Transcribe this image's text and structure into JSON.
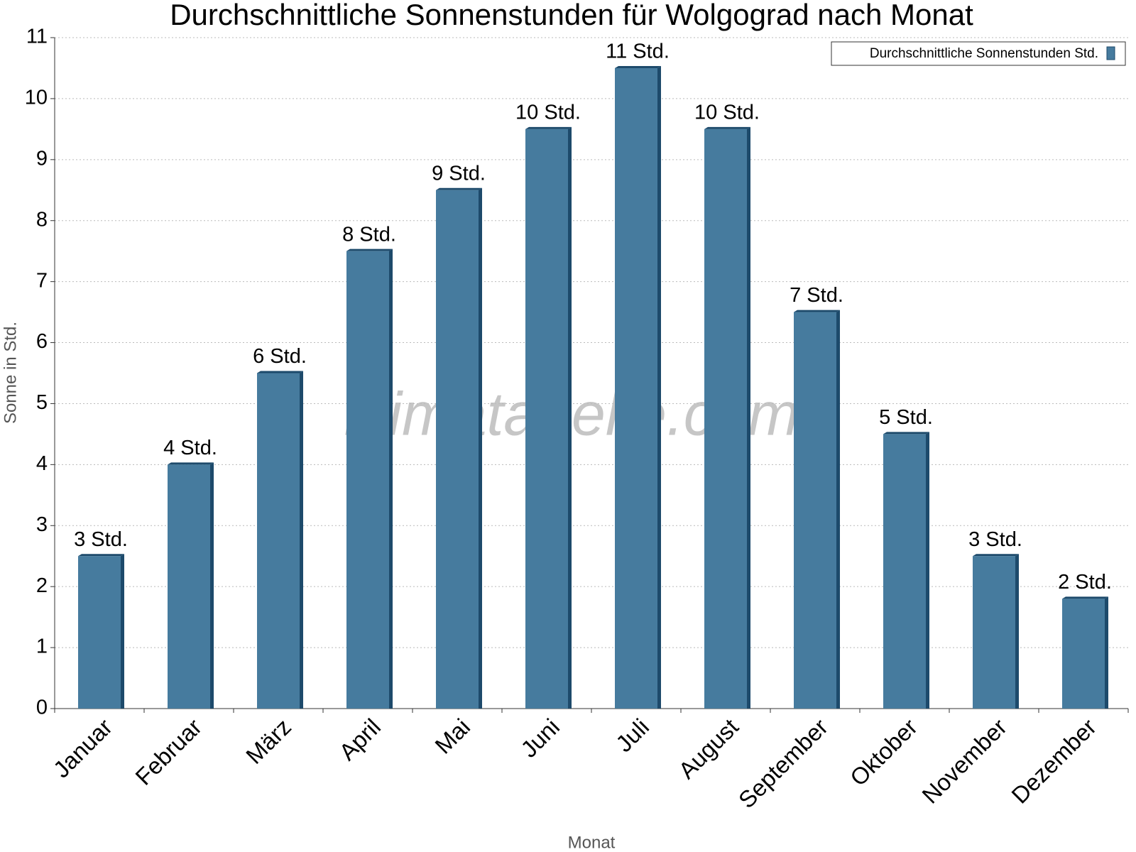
{
  "chart_data": {
    "type": "bar",
    "title": "Durchschnittliche Sonnenstunden für Wolgograd nach Monat",
    "x_label": "Monat",
    "y_label": "Sonne in Std.",
    "watermark": "klimatabelle.com",
    "categories": [
      "Januar",
      "Februar",
      "März",
      "April",
      "Mai",
      "Juni",
      "Juli",
      "August",
      "September",
      "Oktober",
      "November",
      "Dezember"
    ],
    "series": [
      {
        "name": "Durchschnittliche Sonnenstunden Std.",
        "color": "#467b9e",
        "values": [
          2.5,
          4,
          5.5,
          7.5,
          8.5,
          9.5,
          10.5,
          9.5,
          6.5,
          4.5,
          2.5,
          1.8
        ],
        "value_labels": [
          "3 Std.",
          "4 Std.",
          "6 Std.",
          "8 Std.",
          "9 Std.",
          "10 Std.",
          "11 Std.",
          "10 Std.",
          "7 Std.",
          "5 Std.",
          "3 Std.",
          "2 Std."
        ]
      }
    ],
    "ylim": [
      0,
      11
    ],
    "yticks": [
      0,
      1,
      2,
      3,
      4,
      5,
      6,
      7,
      8,
      9,
      10,
      11
    ],
    "grid": true,
    "legend": "top-right"
  }
}
